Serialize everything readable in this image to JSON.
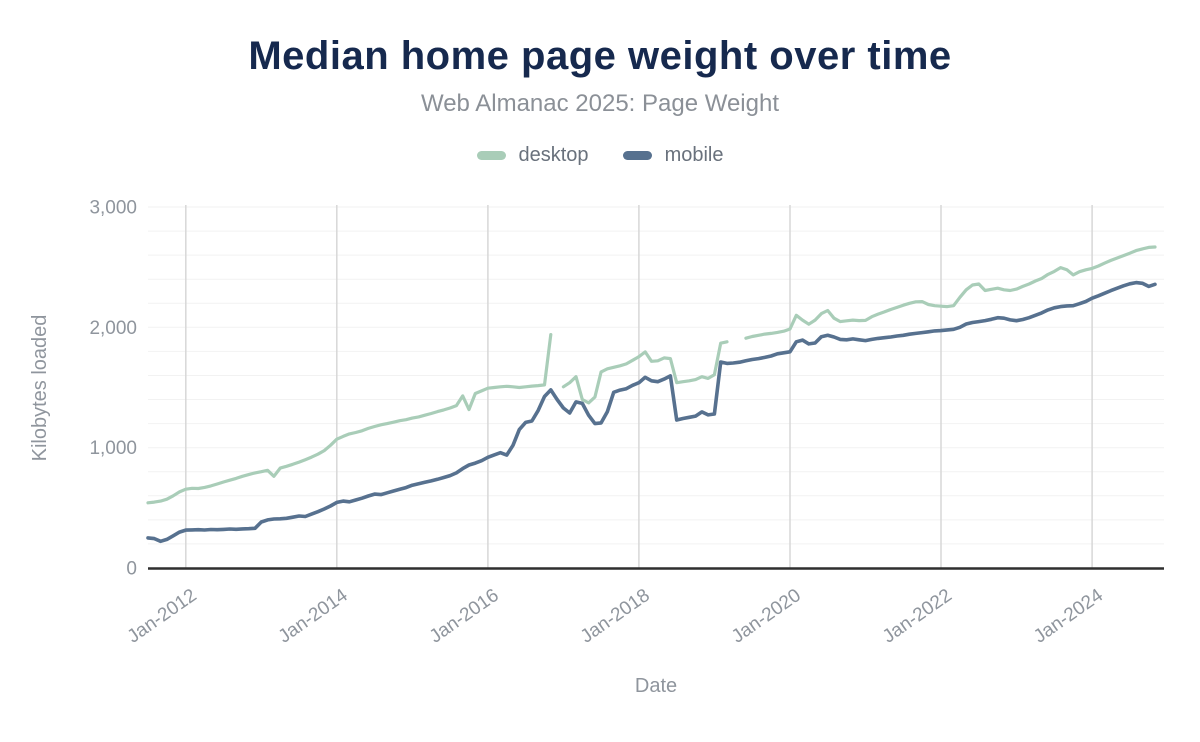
{
  "header": {
    "title": "Median home page weight over time",
    "subtitle": "Web Almanac 2025: Page Weight"
  },
  "legend": {
    "items": [
      {
        "label": "desktop",
        "color": "#a9cdb8"
      },
      {
        "label": "mobile",
        "color": "#57718f"
      }
    ]
  },
  "colors": {
    "title": "#16294e",
    "subtitle": "#8b9097",
    "tick_label": "#8f959d",
    "axis_title": "#8f959d",
    "major_gridline": "#d7d7d7",
    "minor_gridline": "#f2f2f2",
    "axis_line": "#2f2f2f",
    "desktop_series": "#a9cdb8",
    "mobile_series": "#57718f"
  },
  "chart_data": {
    "type": "line",
    "title": "Median home page weight over time",
    "subtitle": "Web Almanac 2025: Page Weight",
    "xlabel": "Date",
    "ylabel": "Kilobytes loaded",
    "legend_position": "top",
    "grid": true,
    "x_start": "2011-07",
    "x_freq": "monthly",
    "x_tick_labels": [
      "Jan-2012",
      "Jan-2014",
      "Jan-2016",
      "Jan-2018",
      "Jan-2020",
      "Jan-2022",
      "Jan-2024"
    ],
    "x_tick_indices": [
      6,
      30,
      54,
      78,
      102,
      126,
      150
    ],
    "y_ticks": [
      0,
      1000,
      2000,
      3000
    ],
    "y_tick_labels": [
      "0",
      "1,000",
      "2,000",
      "3,000"
    ],
    "ylim": [
      0,
      3000
    ],
    "y_minor_step": 200,
    "note": "values are median kilobytes loaded per month, Jul-2011 to Nov-2024; null = gap in line",
    "series": [
      {
        "name": "desktop",
        "color": "#a9cdb8",
        "values": [
          542,
          548,
          556,
          572,
          600,
          632,
          655,
          662,
          661,
          670,
          682,
          698,
          715,
          730,
          745,
          762,
          776,
          790,
          800,
          812,
          762,
          830,
          845,
          862,
          880,
          900,
          922,
          946,
          976,
          1020,
          1070,
          1094,
          1114,
          1126,
          1140,
          1160,
          1176,
          1190,
          1200,
          1212,
          1224,
          1232,
          1246,
          1256,
          1270,
          1284,
          1300,
          1314,
          1330,
          1350,
          1430,
          1316,
          1450,
          1472,
          1494,
          1500,
          1506,
          1510,
          1506,
          1500,
          1506,
          1512,
          1516,
          1522,
          1940,
          null,
          1506,
          1540,
          1590,
          1400,
          1372,
          1420,
          1630,
          1655,
          1668,
          1680,
          1696,
          1726,
          1756,
          1796,
          1718,
          1722,
          1746,
          1740,
          1540,
          1548,
          1556,
          1566,
          1590,
          1576,
          1606,
          1868,
          1880,
          null,
          null,
          1910,
          1924,
          1934,
          1944,
          1950,
          1958,
          1968,
          1986,
          2100,
          2060,
          2026,
          2060,
          2114,
          2140,
          2076,
          2048,
          2054,
          2060,
          2056,
          2058,
          2088,
          2110,
          2128,
          2148,
          2166,
          2184,
          2200,
          2212,
          2214,
          2190,
          2180,
          2176,
          2172,
          2180,
          2250,
          2312,
          2352,
          2360,
          2306,
          2316,
          2325,
          2312,
          2306,
          2318,
          2340,
          2360,
          2385,
          2406,
          2440,
          2465,
          2496,
          2478,
          2436,
          2462,
          2478,
          2490,
          2510,
          2534,
          2556,
          2576,
          2596,
          2616,
          2638,
          2652,
          2664,
          2668
        ]
      },
      {
        "name": "mobile",
        "color": "#57718f",
        "values": [
          250,
          244,
          222,
          238,
          268,
          298,
          315,
          317,
          318,
          316,
          320,
          318,
          321,
          324,
          322,
          325,
          327,
          330,
          382,
          400,
          407,
          409,
          413,
          422,
          432,
          428,
          448,
          468,
          490,
          515,
          545,
          556,
          550,
          565,
          580,
          598,
          614,
          610,
          625,
          640,
          654,
          668,
          688,
          700,
          712,
          724,
          737,
          752,
          768,
          790,
          826,
          856,
          872,
          892,
          920,
          940,
          958,
          938,
          1020,
          1150,
          1210,
          1222,
          1310,
          1425,
          1480,
          1400,
          1330,
          1288,
          1380,
          1368,
          1270,
          1200,
          1206,
          1300,
          1460,
          1478,
          1490,
          1518,
          1540,
          1585,
          1556,
          1548,
          1570,
          1596,
          1230,
          1242,
          1252,
          1262,
          1297,
          1272,
          1280,
          1712,
          1700,
          1704,
          1710,
          1722,
          1733,
          1740,
          1750,
          1762,
          1780,
          1788,
          1797,
          1880,
          1894,
          1862,
          1870,
          1922,
          1934,
          1920,
          1900,
          1896,
          1904,
          1896,
          1890,
          1900,
          1908,
          1914,
          1920,
          1928,
          1934,
          1943,
          1950,
          1956,
          1963,
          1970,
          1973,
          1979,
          1984,
          2000,
          2028,
          2040,
          2048,
          2056,
          2067,
          2080,
          2076,
          2062,
          2055,
          2065,
          2080,
          2100,
          2120,
          2145,
          2162,
          2172,
          2178,
          2180,
          2196,
          2215,
          2242,
          2262,
          2284,
          2305,
          2325,
          2345,
          2362,
          2372,
          2366,
          2340,
          2358
        ]
      }
    ]
  }
}
